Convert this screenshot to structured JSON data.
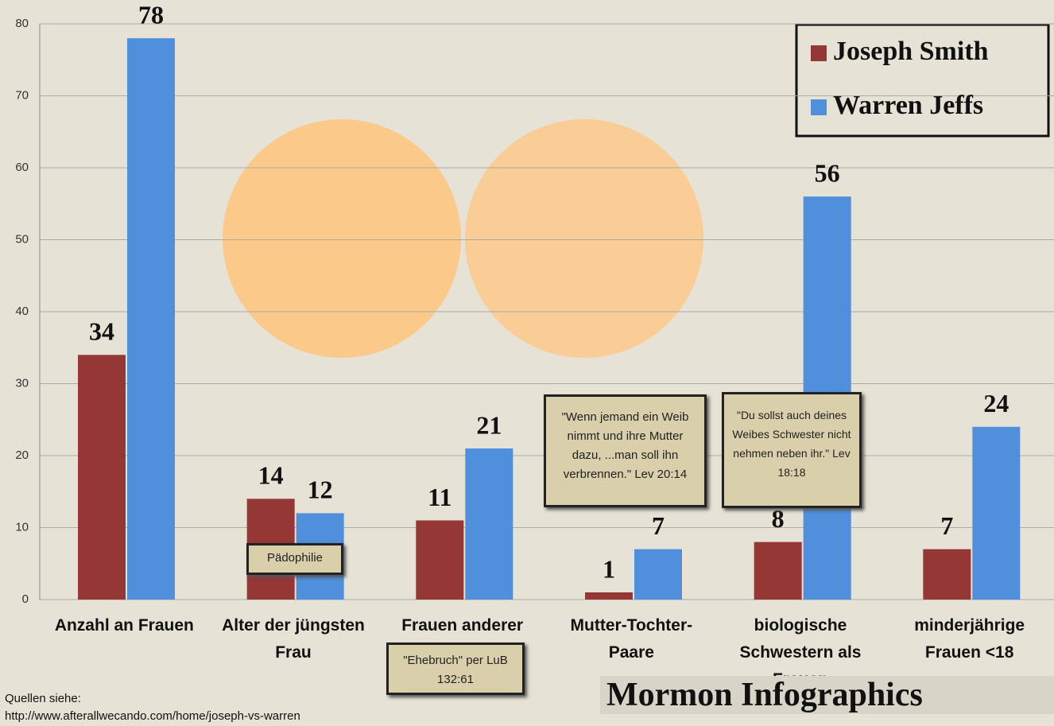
{
  "chart_data": {
    "type": "bar",
    "categories": [
      "Anzahl an Frauen",
      "Alter der jüngsten Frau",
      "Frauen anderer Männer",
      "Mutter-Tochter-Paare",
      "biologische Schwestern als Frauen",
      "minderjährige Frauen <18"
    ],
    "series": [
      {
        "name": "Joseph Smith",
        "color": "#953735",
        "values": [
          34,
          14,
          11,
          1,
          8,
          7
        ]
      },
      {
        "name": "Warren Jeffs",
        "color": "#4f8fdc",
        "values": [
          78,
          12,
          21,
          7,
          56,
          24
        ]
      }
    ],
    "ylim": [
      0,
      80
    ],
    "yticks": [
      0,
      10,
      20,
      30,
      40,
      50,
      60,
      70,
      80
    ],
    "grid": true,
    "legend": "top-right",
    "annotations": [
      "Pädophilie",
      "\"Ehebruch\" per LuB 132:61",
      "\"Wenn jemand ein Weib nimmt und ihre Mutter dazu, ...man soll ihn verbrennen.\" Lev 20:14",
      "\"Du sollst auch deines Weibes Schwester nicht nehmen neben ihr.\" Lev 18:18",
      "Quellen siehe:",
      "http://www.afterallwecando.com/home/joseph-vs-warren",
      "Mormon Infographics"
    ]
  }
}
